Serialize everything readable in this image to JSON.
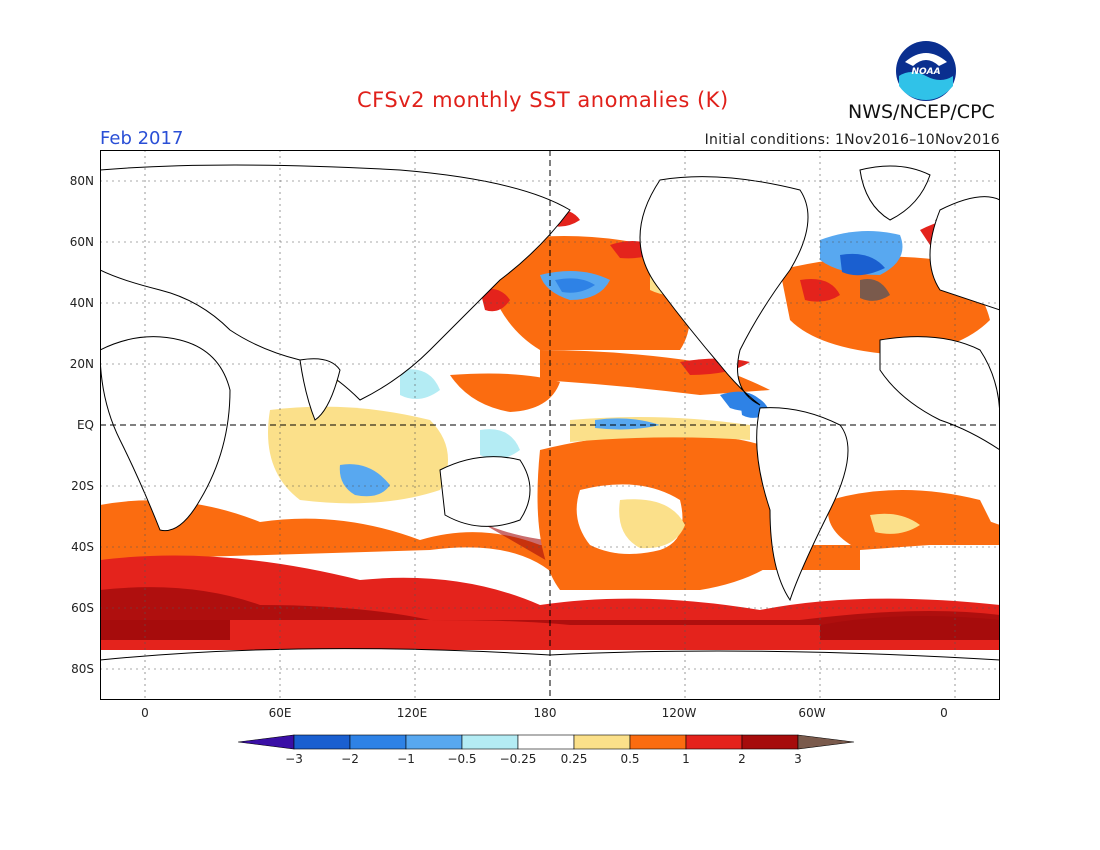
{
  "header": {
    "title": "CFSv2 monthly SST anomalies (K)",
    "org": "NWS/NCEP/CPC",
    "month": "Feb 2017",
    "initial_conditions": "Initial conditions: 1Nov2016–10Nov2016",
    "logo_text": "NOAA"
  },
  "axes": {
    "y_ticks": [
      "80N",
      "60N",
      "40N",
      "20N",
      "EQ",
      "20S",
      "40S",
      "60S",
      "80S"
    ],
    "x_ticks": [
      "0",
      "60E",
      "120E",
      "180",
      "120W",
      "60W",
      "0"
    ]
  },
  "colorbar": {
    "labels": [
      "−3",
      "−2",
      "−1",
      "−0.5",
      "−0.25",
      "0.25",
      "0.5",
      "1",
      "2",
      "3"
    ],
    "colors": [
      "#3a0fa6",
      "#1a5fd0",
      "#2e82e6",
      "#58a8f0",
      "#b4ecf4",
      "#ffffff",
      "#fbe08a",
      "#fb6c10",
      "#e4231c",
      "#a60c0c",
      "#7a5a4c"
    ]
  },
  "map_colors": {
    "ocean_neutral": "#ffffff",
    "land": "#ffffff",
    "coast": "#000000"
  }
}
